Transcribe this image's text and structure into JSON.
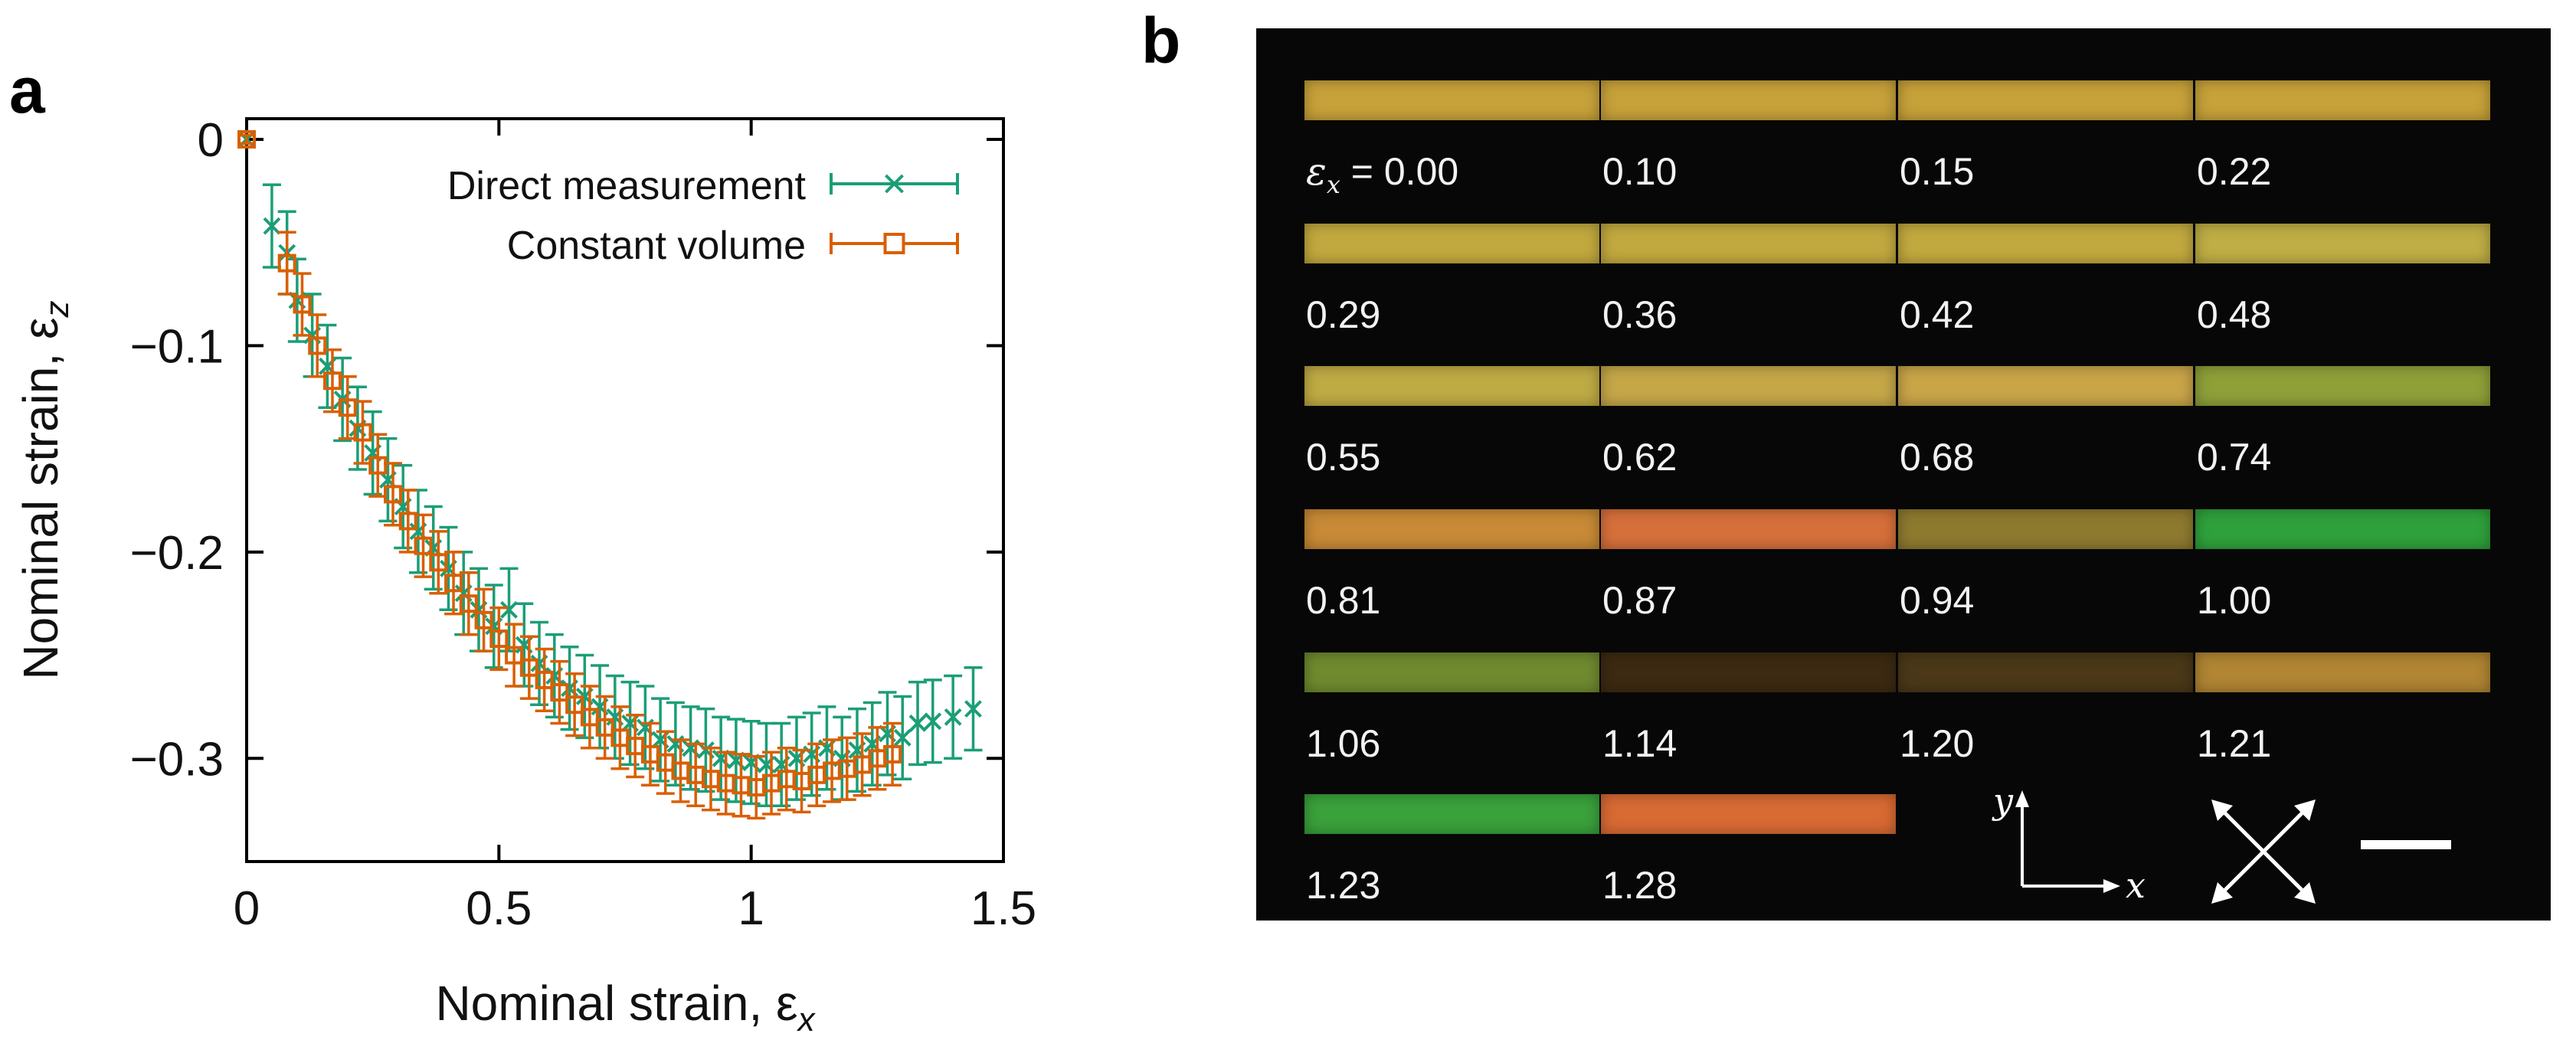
{
  "panel_a": {
    "label": "a"
  },
  "panel_b": {
    "label": "b",
    "strain_prefix": "ε",
    "strain_prefix_sub": "x",
    "strain_prefix_eq": " = ",
    "axis_y": "y",
    "axis_x": "x",
    "strips": [
      {
        "strain": "0.00",
        "color": "#c7a23a"
      },
      {
        "strain": "0.10",
        "color": "#c7a23a"
      },
      {
        "strain": "0.15",
        "color": "#c7a23a"
      },
      {
        "strain": "0.22",
        "color": "#c7a23a"
      },
      {
        "strain": "0.29",
        "color": "#c2a93f"
      },
      {
        "strain": "0.36",
        "color": "#c2a93f"
      },
      {
        "strain": "0.42",
        "color": "#c2a93f"
      },
      {
        "strain": "0.48",
        "color": "#bfae45"
      },
      {
        "strain": "0.55",
        "color": "#bfab44"
      },
      {
        "strain": "0.62",
        "color": "#c5a748"
      },
      {
        "strain": "0.68",
        "color": "#c9a548"
      },
      {
        "strain": "0.74",
        "color": "#8fa039"
      },
      {
        "strain": "0.81",
        "color": "#c88a36"
      },
      {
        "strain": "0.87",
        "color": "#d6703b"
      },
      {
        "strain": "0.94",
        "color": "#8e7a2f"
      },
      {
        "strain": "1.00",
        "color": "#2fa13c"
      },
      {
        "strain": "1.06",
        "color": "#6f8a2f"
      },
      {
        "strain": "1.14",
        "color": "#3c2a12"
      },
      {
        "strain": "1.20",
        "color": "#4a3818"
      },
      {
        "strain": "1.21",
        "color": "#b08533"
      },
      {
        "strain": "1.23",
        "color": "#3aa13b"
      },
      {
        "strain": "1.28",
        "color": "#d86a34"
      }
    ]
  },
  "chart_data": {
    "type": "scatter",
    "title": "",
    "xlabel": "Nominal strain, ε",
    "xlabel_sub": "x",
    "ylabel": "Nominal strain, ε",
    "ylabel_sub": "z",
    "xlim": [
      0,
      1.5
    ],
    "ylim": [
      -0.35,
      0.01
    ],
    "xticks": [
      0,
      0.5,
      1,
      1.5
    ],
    "xtick_labels": [
      "0",
      "0.5",
      "1",
      "1.5"
    ],
    "yticks": [
      0,
      -0.1,
      -0.2,
      -0.3
    ],
    "ytick_labels": [
      "0",
      "−0.1",
      "−0.2",
      "−0.3"
    ],
    "legend_position": "top-right",
    "series": [
      {
        "name": "Direct measurement",
        "marker": "x",
        "color": "#1b9e77",
        "x": [
          0.0,
          0.05,
          0.08,
          0.1,
          0.13,
          0.16,
          0.19,
          0.22,
          0.25,
          0.28,
          0.31,
          0.34,
          0.37,
          0.4,
          0.43,
          0.46,
          0.49,
          0.52,
          0.55,
          0.58,
          0.61,
          0.64,
          0.67,
          0.7,
          0.73,
          0.76,
          0.79,
          0.82,
          0.85,
          0.88,
          0.91,
          0.94,
          0.97,
          1.0,
          1.03,
          1.06,
          1.09,
          1.12,
          1.15,
          1.18,
          1.21,
          1.24,
          1.27,
          1.3,
          1.33,
          1.36,
          1.4,
          1.44
        ],
        "y": [
          0.0,
          -0.042,
          -0.055,
          -0.078,
          -0.095,
          -0.11,
          -0.126,
          -0.14,
          -0.152,
          -0.165,
          -0.178,
          -0.19,
          -0.198,
          -0.208,
          -0.22,
          -0.228,
          -0.236,
          -0.228,
          -0.245,
          -0.254,
          -0.26,
          -0.266,
          -0.27,
          -0.275,
          -0.28,
          -0.283,
          -0.285,
          -0.291,
          -0.293,
          -0.295,
          -0.296,
          -0.3,
          -0.301,
          -0.302,
          -0.303,
          -0.303,
          -0.3,
          -0.298,
          -0.295,
          -0.3,
          -0.296,
          -0.293,
          -0.288,
          -0.29,
          -0.283,
          -0.282,
          -0.28,
          -0.276
        ],
        "err": [
          0.002,
          0.02,
          0.02,
          0.02,
          0.02,
          0.02,
          0.02,
          0.02,
          0.02,
          0.02,
          0.02,
          0.02,
          0.02,
          0.02,
          0.02,
          0.02,
          0.02,
          0.02,
          0.02,
          0.02,
          0.02,
          0.02,
          0.02,
          0.02,
          0.02,
          0.02,
          0.02,
          0.02,
          0.02,
          0.02,
          0.02,
          0.02,
          0.02,
          0.02,
          0.02,
          0.02,
          0.02,
          0.02,
          0.02,
          0.02,
          0.02,
          0.02,
          0.02,
          0.02,
          0.02,
          0.02,
          0.02,
          0.02
        ]
      },
      {
        "name": "Constant volume",
        "marker": "square",
        "color": "#d95f02",
        "x": [
          0.0,
          0.08,
          0.11,
          0.14,
          0.17,
          0.2,
          0.23,
          0.26,
          0.29,
          0.32,
          0.35,
          0.38,
          0.41,
          0.44,
          0.47,
          0.5,
          0.53,
          0.56,
          0.59,
          0.62,
          0.65,
          0.68,
          0.71,
          0.74,
          0.77,
          0.8,
          0.83,
          0.86,
          0.89,
          0.92,
          0.95,
          0.98,
          1.01,
          1.04,
          1.07,
          1.1,
          1.13,
          1.16,
          1.19,
          1.22,
          1.25,
          1.28
        ],
        "y": [
          0.0,
          -0.06,
          -0.08,
          -0.1,
          -0.117,
          -0.13,
          -0.142,
          -0.158,
          -0.172,
          -0.185,
          -0.197,
          -0.205,
          -0.215,
          -0.225,
          -0.233,
          -0.242,
          -0.25,
          -0.256,
          -0.262,
          -0.268,
          -0.274,
          -0.28,
          -0.285,
          -0.29,
          -0.294,
          -0.298,
          -0.302,
          -0.306,
          -0.308,
          -0.31,
          -0.312,
          -0.313,
          -0.314,
          -0.312,
          -0.31,
          -0.311,
          -0.308,
          -0.306,
          -0.305,
          -0.303,
          -0.3,
          -0.298
        ],
        "err": [
          0.002,
          0.015,
          0.015,
          0.015,
          0.015,
          0.015,
          0.015,
          0.015,
          0.015,
          0.015,
          0.015,
          0.015,
          0.015,
          0.015,
          0.015,
          0.015,
          0.015,
          0.015,
          0.015,
          0.015,
          0.015,
          0.015,
          0.015,
          0.015,
          0.015,
          0.015,
          0.015,
          0.015,
          0.015,
          0.015,
          0.015,
          0.015,
          0.015,
          0.015,
          0.015,
          0.015,
          0.015,
          0.015,
          0.015,
          0.015,
          0.015,
          0.015
        ]
      }
    ]
  }
}
